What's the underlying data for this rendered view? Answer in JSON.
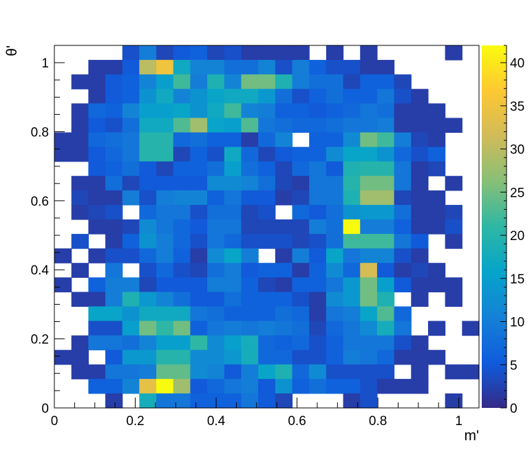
{
  "chart_data": {
    "type": "heatmap",
    "title": "",
    "xlabel": "m'",
    "ylabel": "θ'",
    "xlim": [
      0,
      1.05
    ],
    "ylim": [
      0,
      1.05
    ],
    "x_ticks": [
      "0",
      "0.2",
      "0.4",
      "0.6",
      "0.8",
      "1"
    ],
    "y_ticks": [
      "0",
      "0.2",
      "0.4",
      "0.6",
      "0.8",
      "1"
    ],
    "bins": 25,
    "bin_width": 0.042,
    "zlim": [
      0,
      42
    ],
    "colorbar_ticks": [
      "0",
      "5",
      "10",
      "15",
      "20",
      "25",
      "30",
      "35",
      "40"
    ],
    "palette": [
      "#352a87",
      "#0f5cdd",
      "#1481d6",
      "#06a4ca",
      "#2eb7a4",
      "#87bf77",
      "#d1bb59",
      "#fec832",
      "#f9fb0e"
    ],
    "grid": false,
    "rows_top_to_bottom": [
      [
        null,
        null,
        null,
        null,
        4,
        10,
        3,
        5,
        6,
        3,
        4,
        2,
        2,
        2,
        2,
        null,
        2,
        null,
        2,
        null,
        null,
        null,
        null,
        2,
        null
      ],
      [
        null,
        null,
        2,
        2,
        5,
        30,
        35,
        17,
        11,
        11,
        8,
        8,
        11,
        4,
        10,
        6,
        4,
        4,
        2,
        2,
        null,
        null,
        null,
        null,
        null
      ],
      [
        null,
        2,
        2,
        5,
        6,
        11,
        15,
        22,
        10,
        19,
        11,
        25,
        25,
        19,
        10,
        8,
        8,
        3,
        6,
        6,
        3,
        null,
        null,
        null,
        null
      ],
      [
        null,
        null,
        2,
        5,
        6,
        13,
        17,
        11,
        13,
        16,
        17,
        17,
        14,
        8,
        4,
        6,
        8,
        6,
        6,
        9,
        4,
        2,
        null,
        null,
        null
      ],
      [
        null,
        2,
        7,
        6,
        11,
        15,
        15,
        16,
        13,
        17,
        22,
        11,
        10,
        6,
        6,
        5,
        6,
        7,
        9,
        8,
        2,
        2,
        2,
        null,
        null
      ],
      [
        null,
        2,
        5,
        4,
        8,
        17,
        17,
        23,
        28,
        16,
        15,
        23,
        9,
        8,
        7,
        7,
        8,
        9,
        9,
        10,
        2,
        2,
        2,
        2,
        null
      ],
      [
        2,
        2,
        7,
        8,
        9,
        20,
        20,
        7,
        8,
        6,
        6,
        2,
        7,
        11,
        null,
        6,
        6,
        12,
        25,
        22,
        10,
        3,
        2,
        null,
        null
      ],
      [
        2,
        2,
        5,
        7,
        9,
        20,
        20,
        3,
        6,
        4,
        17,
        7,
        3,
        5,
        6,
        6,
        12,
        16,
        16,
        13,
        7,
        4,
        6,
        null,
        null
      ],
      [
        null,
        null,
        5,
        6,
        8,
        5,
        3,
        6,
        6,
        8,
        15,
        8,
        6,
        3,
        7,
        9,
        5,
        19,
        20,
        20,
        9,
        2,
        3,
        null,
        null
      ],
      [
        null,
        2,
        2,
        8,
        3,
        5,
        5,
        5,
        5,
        12,
        12,
        11,
        8,
        3,
        2,
        9,
        9,
        20,
        25,
        25,
        9,
        2,
        null,
        2,
        null
      ],
      [
        null,
        3,
        2,
        2,
        10,
        4,
        10,
        11,
        11,
        6,
        9,
        5,
        5,
        2,
        3,
        9,
        9,
        19,
        28,
        28,
        3,
        2,
        2,
        null,
        null
      ],
      [
        null,
        2,
        3,
        4,
        null,
        7,
        9,
        9,
        4,
        8,
        8,
        3,
        4,
        null,
        7,
        5,
        8,
        13,
        14,
        14,
        8,
        2,
        2,
        3,
        null
      ],
      [
        null,
        null,
        2,
        2,
        3,
        12,
        9,
        7,
        5,
        9,
        9,
        3,
        3,
        3,
        3,
        10,
        8,
        42,
        10,
        10,
        6,
        2,
        2,
        4,
        null
      ],
      [
        null,
        4,
        null,
        2,
        6,
        13,
        10,
        7,
        4,
        9,
        7,
        4,
        4,
        4,
        3,
        4,
        8,
        22,
        22,
        22,
        9,
        5,
        null,
        2,
        null
      ],
      [
        2,
        null,
        2,
        4,
        4,
        7,
        10,
        6,
        2,
        12,
        16,
        10,
        null,
        2,
        10,
        5,
        16,
        9,
        11,
        11,
        4,
        2,
        null,
        null,
        null
      ],
      [
        null,
        2,
        null,
        9,
        null,
        4,
        7,
        4,
        3,
        8,
        10,
        5,
        6,
        6,
        2,
        6,
        12,
        7,
        32,
        5,
        2,
        3,
        2,
        null,
        null
      ],
      [
        2,
        null,
        6,
        10,
        10,
        3,
        5,
        5,
        5,
        10,
        10,
        6,
        3,
        2,
        6,
        6,
        9,
        14,
        25,
        15,
        5,
        2,
        2,
        2,
        null
      ],
      [
        null,
        2,
        2,
        10,
        19,
        14,
        11,
        8,
        5,
        5,
        8,
        6,
        6,
        6,
        4,
        2,
        12,
        14,
        25,
        19,
        null,
        2,
        null,
        2,
        null
      ],
      [
        null,
        null,
        16,
        16,
        13,
        17,
        17,
        17,
        9,
        8,
        6,
        6,
        6,
        8,
        7,
        2,
        9,
        10,
        16,
        23,
        7,
        null,
        null,
        null,
        null
      ],
      [
        null,
        null,
        4,
        4,
        15,
        25,
        21,
        25,
        6,
        9,
        10,
        9,
        10,
        9,
        8,
        3,
        7,
        9,
        12,
        18,
        9,
        null,
        2,
        null,
        2
      ],
      [
        null,
        2,
        9,
        9,
        8,
        11,
        15,
        15,
        21,
        12,
        15,
        18,
        7,
        6,
        7,
        4,
        6,
        9,
        9,
        9,
        4,
        2,
        null,
        null,
        null
      ],
      [
        2,
        2,
        null,
        5,
        14,
        14,
        20,
        20,
        12,
        12,
        14,
        18,
        7,
        7,
        4,
        4,
        6,
        10,
        9,
        7,
        2,
        2,
        2,
        null,
        null
      ],
      [
        null,
        2,
        2,
        9,
        9,
        10,
        24,
        24,
        12,
        11,
        5,
        10,
        16,
        19,
        7,
        12,
        4,
        4,
        4,
        4,
        null,
        2,
        null,
        2,
        2
      ],
      [
        null,
        null,
        6,
        6,
        11,
        34,
        42,
        28,
        5,
        7,
        9,
        10,
        5,
        13,
        6,
        8,
        6,
        6,
        4,
        2,
        2,
        2,
        null,
        null,
        null
      ],
      [
        null,
        null,
        null,
        2,
        null,
        18,
        9,
        9,
        6,
        6,
        6,
        9,
        5,
        3,
        null,
        null,
        null,
        2,
        4,
        null,
        null,
        null,
        null,
        2,
        null
      ]
    ]
  }
}
